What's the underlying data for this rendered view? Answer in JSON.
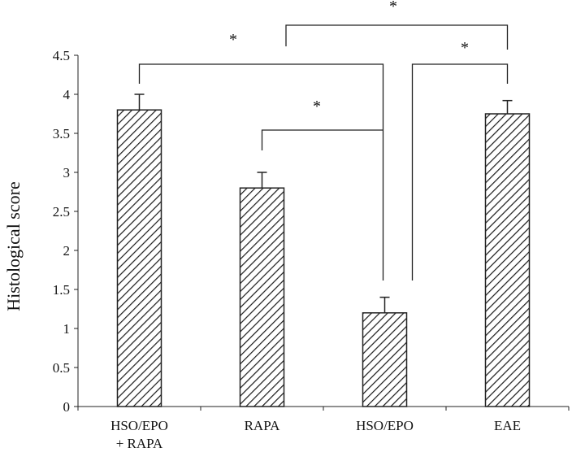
{
  "chart_data": {
    "type": "bar",
    "categories": [
      [
        "HSO/EPO",
        "+ RAPA"
      ],
      [
        "RAPA"
      ],
      [
        "HSO/EPO"
      ],
      [
        "EAE"
      ]
    ],
    "values": [
      3.8,
      2.8,
      1.2,
      3.75
    ],
    "errors": [
      0.2,
      0.2,
      0.2,
      0.17
    ],
    "title": "",
    "xlabel": "",
    "ylabel": "Histological score",
    "ylim": [
      0,
      4.5
    ],
    "yticks": [
      "0",
      "0.5",
      "1",
      "1.5",
      "2",
      "2.5",
      "3",
      "3.5",
      "4",
      "4.5"
    ],
    "bar_fill": "hatched",
    "bar_color": "#222222",
    "grid": false,
    "legend": "none",
    "significance": [
      {
        "between": [
          0,
          2
        ],
        "label": "*"
      },
      {
        "between": [
          1,
          2
        ],
        "label": "*"
      },
      {
        "between": [
          2,
          3
        ],
        "label": "*"
      },
      {
        "between": [
          1,
          3
        ],
        "label": "*"
      }
    ]
  }
}
